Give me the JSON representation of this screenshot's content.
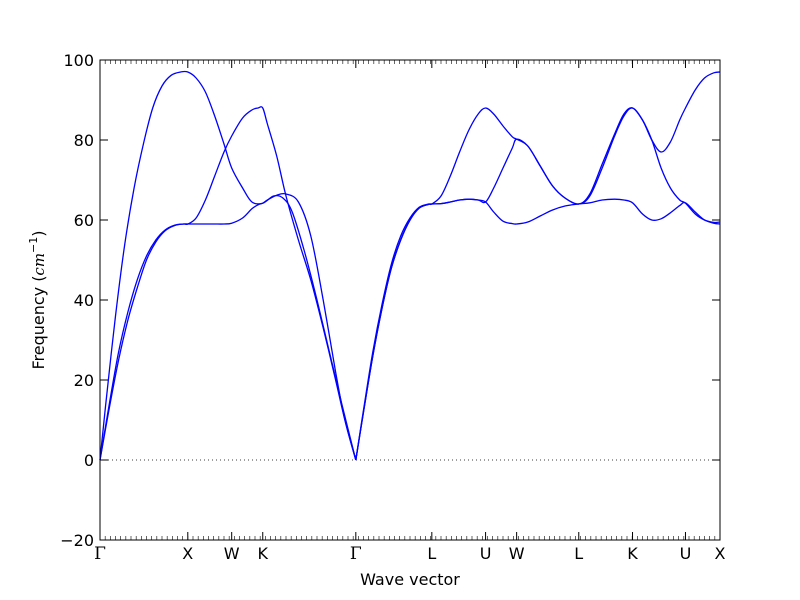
{
  "chart_data": {
    "type": "line",
    "title": "",
    "xlabel": "Wave vector",
    "ylabel": {
      "prefix": "Frequency (",
      "unit_main": "cm",
      "unit_exp": "−1",
      "suffix": ")"
    },
    "ylim": [
      -20,
      100
    ],
    "yticks": [
      -20,
      0,
      20,
      40,
      60,
      80,
      100
    ],
    "xlim": [
      0,
      10
    ],
    "xticks": [
      {
        "label": "Γ",
        "x": 0.0
      },
      {
        "label": "X",
        "x": 1.416
      },
      {
        "label": "W",
        "x": 2.124
      },
      {
        "label": "K",
        "x": 2.625
      },
      {
        "label": "Γ",
        "x": 4.126
      },
      {
        "label": "L",
        "x": 5.352
      },
      {
        "label": "U",
        "x": 6.219
      },
      {
        "label": "W",
        "x": 6.72
      },
      {
        "label": "L",
        "x": 7.722
      },
      {
        "label": "K",
        "x": 8.589
      },
      {
        "label": "U",
        "x": 9.443
      },
      {
        "label": "X",
        "x": 10.0
      }
    ],
    "zero_line": true,
    "grid": false,
    "line_color": "#0000ff",
    "series": [
      {
        "x": [
          0,
          0.15,
          0.3,
          0.45,
          0.6,
          0.75,
          0.9,
          1.05,
          1.2,
          1.35,
          1.416,
          1.55,
          1.7,
          1.85,
          2.0,
          2.124,
          2.3,
          2.45,
          2.55,
          2.625,
          2.7,
          2.85,
          3.0,
          3.2,
          3.4,
          3.6,
          3.8,
          3.95,
          4.126
        ],
        "y": [
          0,
          13,
          25,
          35,
          43,
          50,
          54.5,
          57.3,
          58.6,
          59,
          59,
          59,
          59,
          59,
          59,
          59.2,
          60.5,
          62.8,
          63.8,
          64.2,
          65,
          66.2,
          66.5,
          64.5,
          56,
          40,
          22,
          10,
          0
        ]
      },
      {
        "x": [
          0,
          0.15,
          0.3,
          0.45,
          0.6,
          0.75,
          0.9,
          1.05,
          1.2,
          1.35,
          1.416,
          1.55,
          1.7,
          1.85,
          2.0,
          2.124,
          2.3,
          2.45,
          2.55,
          2.625,
          2.7,
          2.85,
          3.0,
          3.2,
          3.4,
          3.6,
          3.8,
          3.95,
          4.126
        ],
        "y": [
          0,
          14,
          27,
          37,
          45,
          51,
          55,
          57.5,
          58.7,
          59,
          59,
          60.5,
          65,
          71,
          77,
          81,
          85.5,
          87.5,
          88,
          88,
          84,
          76,
          66,
          55,
          45,
          33,
          20,
          10,
          0
        ]
      },
      {
        "x": [
          0,
          0.1,
          0.25,
          0.4,
          0.55,
          0.7,
          0.85,
          1.0,
          1.15,
          1.3,
          1.416,
          1.55,
          1.7,
          1.85,
          2.0,
          2.124,
          2.3,
          2.45,
          2.625,
          2.8,
          2.95,
          3.1,
          3.3,
          3.5,
          3.7,
          3.9,
          4.126
        ],
        "y": [
          0,
          15,
          36,
          54,
          68,
          79,
          88,
          93.5,
          96.2,
          97,
          97,
          95.5,
          92,
          86,
          79,
          73,
          68,
          64.5,
          64.2,
          66,
          65.5,
          62,
          52,
          40,
          27,
          14,
          0
        ]
      },
      {
        "x": [
          4.126,
          4.25,
          4.4,
          4.55,
          4.7,
          4.85,
          5.0,
          5.15,
          5.3,
          5.352,
          5.5,
          5.65,
          5.8,
          5.95,
          6.1,
          6.219,
          6.35,
          6.5,
          6.65,
          6.72,
          6.9,
          7.1,
          7.3,
          7.5,
          7.722,
          7.9,
          8.1,
          8.3,
          8.45,
          8.589,
          8.75,
          8.9,
          9.05,
          9.2,
          9.35,
          9.443,
          9.6,
          9.75,
          9.9,
          10.0
        ],
        "y": [
          0,
          12,
          26,
          38,
          48,
          55,
          60,
          63,
          63.9,
          64,
          64.1,
          64.5,
          65,
          65.2,
          65,
          64.5,
          62,
          59.7,
          59.1,
          59,
          59.5,
          61,
          62.5,
          63.5,
          64,
          64.3,
          65,
          65.2,
          65,
          64.3,
          61.5,
          60,
          60.3,
          61.8,
          63.6,
          64.3,
          62,
          60,
          59.2,
          59
        ]
      },
      {
        "x": [
          4.126,
          4.25,
          4.4,
          4.55,
          4.7,
          4.85,
          5.0,
          5.15,
          5.3,
          5.352,
          5.5,
          5.65,
          5.8,
          5.95,
          6.1,
          6.219,
          6.35,
          6.5,
          6.65,
          6.72,
          6.9,
          7.1,
          7.3,
          7.5,
          7.722,
          7.9,
          8.1,
          8.3,
          8.45,
          8.589,
          8.75,
          8.9,
          9.05,
          9.2,
          9.35,
          9.443,
          9.6,
          9.75,
          9.9,
          10.0
        ],
        "y": [
          0,
          12,
          26,
          38,
          48,
          55,
          60,
          63,
          63.9,
          64,
          64.1,
          64.5,
          65,
          65.2,
          65,
          64.5,
          68,
          73,
          78,
          80.2,
          78.5,
          73.5,
          68.5,
          65.5,
          64,
          66,
          73,
          81,
          86,
          88,
          85,
          80,
          73,
          68,
          65,
          64.2,
          61.5,
          60,
          59.4,
          59.5
        ]
      },
      {
        "x": [
          4.126,
          4.25,
          4.4,
          4.55,
          4.7,
          4.85,
          5.0,
          5.15,
          5.3,
          5.352,
          5.5,
          5.65,
          5.8,
          5.95,
          6.1,
          6.219,
          6.35,
          6.5,
          6.65,
          6.72,
          6.9,
          7.1,
          7.3,
          7.5,
          7.722,
          7.9,
          8.1,
          8.3,
          8.45,
          8.589,
          8.75,
          8.9,
          9.05,
          9.2,
          9.35,
          9.443,
          9.6,
          9.75,
          9.9,
          10.0
        ],
        "y": [
          0,
          12.5,
          27,
          39,
          49,
          56,
          60.5,
          63.2,
          64,
          64,
          66,
          71,
          77,
          82.5,
          86.5,
          88,
          86.5,
          83.5,
          80.8,
          80.2,
          78.5,
          73.5,
          68.5,
          65.5,
          64,
          66.5,
          74,
          81.5,
          86.5,
          88,
          85,
          80,
          77,
          79.5,
          85,
          88,
          92.5,
          95.5,
          96.8,
          97
        ]
      }
    ]
  }
}
